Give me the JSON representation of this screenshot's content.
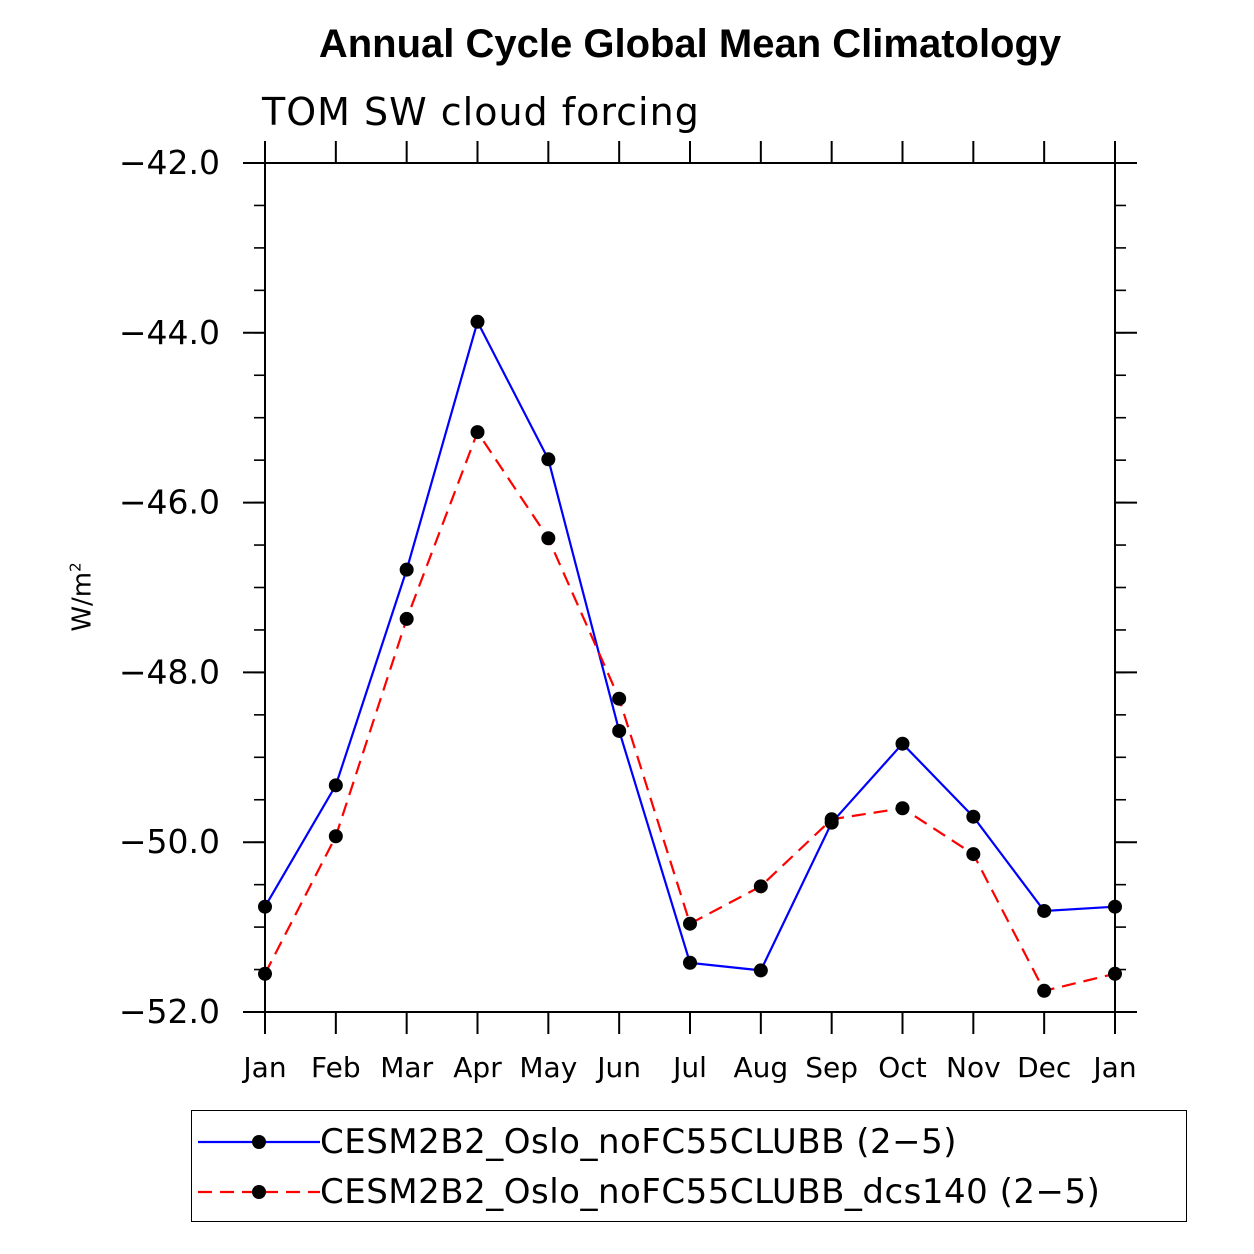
{
  "chart_data": {
    "type": "line",
    "title": "Annual Cycle Global Mean Climatology",
    "subtitle": "TOM SW cloud forcing",
    "ylabel": "W/m",
    "ylabel_sup": "2",
    "xlabel": "",
    "categories": [
      "Jan",
      "Feb",
      "Mar",
      "Apr",
      "May",
      "Jun",
      "Jul",
      "Aug",
      "Sep",
      "Oct",
      "Nov",
      "Dec",
      "Jan"
    ],
    "ylim": [
      -52.0,
      -42.0
    ],
    "yticks": [
      "-42.0",
      "-44.0",
      "-46.0",
      "-48.0",
      "-50.0",
      "-52.0"
    ],
    "series": [
      {
        "name": "CESM2B2_Oslo_noFC55CLUBB (2−5)",
        "color": "#0000ff",
        "dash": "solid",
        "values": [
          -50.76,
          -49.33,
          -46.79,
          -43.87,
          -45.49,
          -48.69,
          -51.42,
          -51.51,
          -49.77,
          -48.84,
          -49.7,
          -50.81,
          -50.76
        ]
      },
      {
        "name": "CESM2B2_Oslo_noFC55CLUBB_dcs140 (2−5)",
        "color": "#ff0000",
        "dash": "dashed",
        "values": [
          -51.55,
          -49.93,
          -47.37,
          -45.17,
          -46.42,
          -48.31,
          -50.96,
          -50.52,
          -49.73,
          -49.6,
          -50.14,
          -51.75,
          -51.55
        ]
      }
    ],
    "legend_position": "bottom",
    "grid": false
  }
}
